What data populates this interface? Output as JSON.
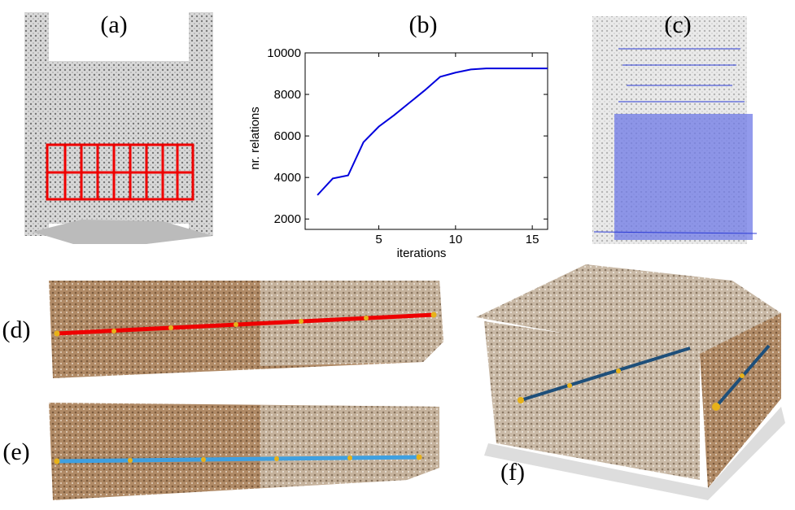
{
  "panel_labels": [
    "(a)",
    "(c)",
    "(d)",
    "(e)",
    "(f)"
  ],
  "chart_data": {
    "type": "line",
    "title": "(b)",
    "xlabel": "iterations",
    "ylabel": "nr. relations",
    "x": [
      1,
      2,
      3,
      4,
      5,
      6,
      7,
      8,
      9,
      10,
      11,
      12,
      13,
      14,
      15,
      16
    ],
    "series": [
      {
        "name": "nr. relations",
        "color": "#0000dd",
        "values": [
          3150,
          3950,
          4100,
          5700,
          6450,
          7000,
          7600,
          8200,
          8850,
          9050,
          9200,
          9250,
          9250,
          9250,
          9250,
          9250
        ]
      }
    ],
    "xlim": [
      0.2,
      16
    ],
    "ylim": [
      1500,
      10000
    ],
    "xticks": [
      5,
      10,
      15
    ],
    "yticks": [
      2000,
      4000,
      6000,
      8000,
      10000
    ],
    "grid": false
  }
}
